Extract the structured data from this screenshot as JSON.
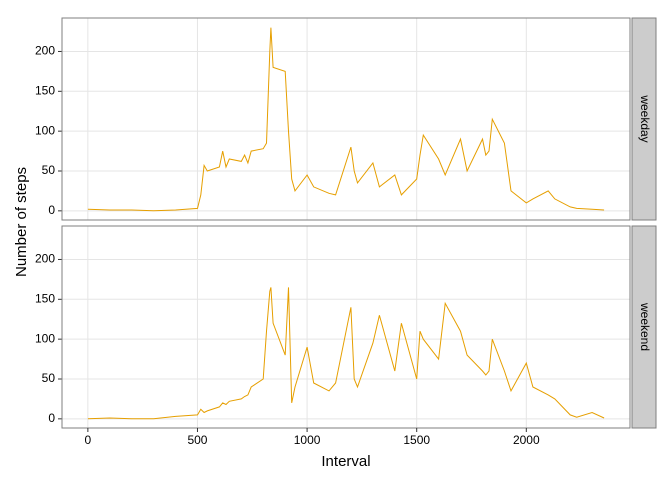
{
  "chart_data": {
    "type": "line",
    "facet": true,
    "grid": true,
    "xlabel": "Interval",
    "ylabel": "Number of steps",
    "x": [
      0,
      100,
      200,
      300,
      400,
      500,
      515,
      530,
      545,
      600,
      615,
      630,
      645,
      700,
      715,
      730,
      745,
      800,
      815,
      830,
      835,
      845,
      900,
      915,
      930,
      945,
      1000,
      1030,
      1100,
      1130,
      1200,
      1215,
      1230,
      1300,
      1330,
      1400,
      1430,
      1500,
      1515,
      1530,
      1600,
      1630,
      1700,
      1730,
      1800,
      1815,
      1830,
      1845,
      1900,
      1930,
      2000,
      2030,
      2100,
      2130,
      2200,
      2230,
      2300,
      2355
    ],
    "series": [
      {
        "name": "weekday",
        "color": "#E69F00",
        "values": [
          2,
          1,
          1,
          0,
          1,
          3,
          20,
          57,
          50,
          55,
          75,
          55,
          65,
          62,
          70,
          60,
          75,
          78,
          85,
          200,
          230,
          180,
          175,
          100,
          40,
          25,
          45,
          30,
          22,
          20,
          80,
          50,
          35,
          60,
          30,
          45,
          20,
          40,
          70,
          95,
          65,
          45,
          90,
          50,
          90,
          70,
          75,
          115,
          85,
          25,
          10,
          15,
          25,
          15,
          5,
          3,
          2,
          1
        ]
      },
      {
        "name": "weekend",
        "color": "#E69F00",
        "values": [
          0,
          1,
          0,
          0,
          3,
          5,
          12,
          8,
          10,
          15,
          20,
          18,
          22,
          25,
          28,
          30,
          40,
          50,
          110,
          160,
          165,
          120,
          80,
          165,
          20,
          40,
          90,
          45,
          35,
          45,
          140,
          50,
          40,
          95,
          130,
          60,
          120,
          50,
          110,
          100,
          75,
          145,
          110,
          80,
          60,
          55,
          60,
          100,
          60,
          35,
          70,
          40,
          30,
          25,
          5,
          2,
          8,
          1
        ]
      }
    ],
    "xlim": [
      -118,
      2473
    ],
    "ylim": [
      -11.5,
      242
    ],
    "xticks": [
      0,
      500,
      1000,
      1500,
      2000
    ],
    "yticks": [
      0,
      50,
      100,
      150,
      200
    ]
  }
}
